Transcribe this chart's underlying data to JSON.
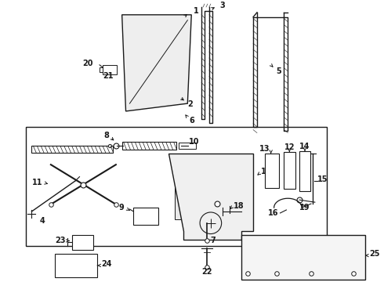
{
  "bg_color": "#ffffff",
  "fig_width": 4.9,
  "fig_height": 3.6,
  "dpi": 100,
  "lc": "#1a1a1a",
  "fs": 6.5,
  "fs_bold": 7.0
}
